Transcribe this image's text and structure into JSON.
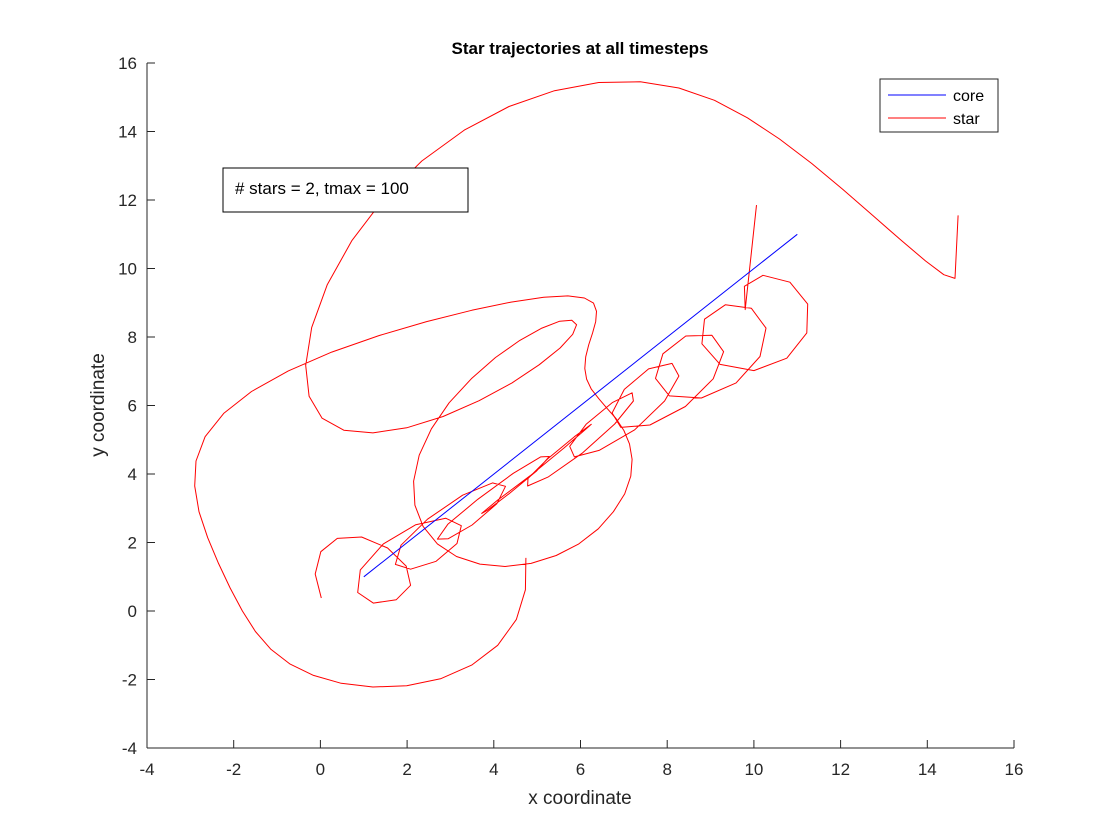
{
  "chart_data": {
    "type": "line",
    "title": "Star trajectories at all timesteps",
    "xlabel": "x coordinate",
    "ylabel": "y coordinate",
    "xlim": [
      -4,
      16
    ],
    "ylim": [
      -4,
      16
    ],
    "xticks": [
      -4,
      -2,
      0,
      2,
      4,
      6,
      8,
      10,
      12,
      14,
      16
    ],
    "yticks": [
      -4,
      -2,
      0,
      2,
      4,
      6,
      8,
      10,
      12,
      14,
      16
    ],
    "grid": false,
    "legend_position": "top-right",
    "annotation": "# stars = 2, tmax = 100",
    "series": [
      {
        "name": "core",
        "color": "#0000ff",
        "x": [
          1,
          11
        ],
        "y": [
          1,
          11
        ]
      },
      {
        "name": "star",
        "color": "#ff0000",
        "x": [
          0.02,
          -0.12,
          0.01,
          0.39,
          0.95,
          1.55,
          1.98,
          2.08,
          1.75,
          1.22,
          0.86,
          0.92,
          1.45,
          2.2,
          2.89,
          3.25,
          3.15,
          2.67,
          2.08,
          1.73,
          1.86,
          2.47,
          3.28,
          3.97,
          4.27,
          4.07,
          3.5,
          2.95,
          2.7,
          2.94,
          3.63,
          4.45,
          5.08,
          5.28,
          4.98,
          4.36,
          3.85,
          3.72,
          4.08,
          4.84,
          5.62,
          6.15,
          6.25,
          5.86,
          5.24,
          4.79,
          4.78,
          5.25,
          6.05,
          6.79,
          7.22,
          7.19,
          6.74,
          6.13,
          5.75,
          5.86,
          6.43,
          7.25,
          7.94,
          8.27,
          8.11,
          7.57,
          7.01,
          6.73,
          6.93,
          7.6,
          8.42,
          9.06,
          9.3,
          9.03,
          8.43,
          7.9,
          7.73,
          8.05,
          8.79,
          9.59,
          10.14,
          10.28,
          9.94,
          9.34,
          8.86,
          8.8,
          9.22,
          10.0,
          10.76,
          11.22,
          11.24,
          10.83,
          10.21,
          9.78,
          9.8,
          10.06
        ],
        "y": [
          0.38,
          1.08,
          1.73,
          2.12,
          2.16,
          1.84,
          1.31,
          0.75,
          0.33,
          0.23,
          0.54,
          1.2,
          1.96,
          2.52,
          2.71,
          2.49,
          1.97,
          1.45,
          1.22,
          1.36,
          1.92,
          2.68,
          3.38,
          3.74,
          3.64,
          3.13,
          2.51,
          2.11,
          2.1,
          2.53,
          3.26,
          4.02,
          4.5,
          4.51,
          4.08,
          3.43,
          2.94,
          2.85,
          3.23,
          3.95,
          4.76,
          5.34,
          5.45,
          5.09,
          4.44,
          3.87,
          3.65,
          3.91,
          4.62,
          5.46,
          6.13,
          6.37,
          6.09,
          5.45,
          4.81,
          4.5,
          4.69,
          5.29,
          6.13,
          6.86,
          7.23,
          7.07,
          6.47,
          5.78,
          5.36,
          5.43,
          5.97,
          6.78,
          7.57,
          8.05,
          8.03,
          7.51,
          6.79,
          6.28,
          6.22,
          6.66,
          7.43,
          8.26,
          8.84,
          8.94,
          8.52,
          7.8,
          7.2,
          7.02,
          7.38,
          8.12,
          8.96,
          9.6,
          9.8,
          9.48,
          8.8,
          11.85
        ]
      },
      {
        "name": "star",
        "color": "#ff0000",
        "x": [
          4.74,
          4.73,
          4.52,
          4.09,
          3.49,
          2.77,
          1.99,
          1.21,
          0.48,
          -0.16,
          -0.7,
          -1.14,
          -1.5,
          -1.8,
          -2.08,
          -2.35,
          -2.6,
          -2.8,
          -2.9,
          -2.87,
          -2.66,
          -2.23,
          -1.59,
          -0.74,
          0.26,
          1.35,
          2.45,
          3.49,
          4.4,
          5.15,
          5.71,
          6.09,
          6.3,
          6.37,
          6.35,
          6.28,
          6.19,
          6.12,
          6.1,
          6.14,
          6.25,
          6.42,
          6.61,
          6.82,
          7.0,
          7.13,
          7.19,
          7.16,
          7.02,
          6.76,
          6.41,
          5.96,
          5.44,
          4.86,
          4.26,
          3.68,
          3.14,
          2.7,
          2.37,
          2.18,
          2.15,
          2.28,
          2.56,
          2.97,
          3.48,
          4.04,
          4.6,
          5.11,
          5.52,
          5.8,
          5.91,
          5.82,
          5.53,
          5.05,
          4.42,
          3.66,
          2.83,
          1.99,
          1.21,
          0.54,
          0.04,
          -0.26,
          -0.34,
          -0.2,
          0.16,
          0.73,
          1.47,
          2.34,
          3.32,
          4.35,
          5.4,
          6.42,
          7.38,
          8.27,
          9.09,
          9.85,
          10.59,
          11.33,
          12.05,
          12.75,
          13.4,
          13.96,
          14.38,
          14.64,
          14.71
        ],
        "y": [
          1.55,
          0.62,
          -0.25,
          -1.0,
          -1.58,
          -1.98,
          -2.18,
          -2.22,
          -2.11,
          -1.88,
          -1.55,
          -1.12,
          -0.6,
          0.0,
          0.67,
          1.39,
          2.14,
          2.9,
          3.65,
          4.38,
          5.09,
          5.77,
          6.41,
          7.01,
          7.56,
          8.04,
          8.45,
          8.78,
          9.02,
          9.16,
          9.2,
          9.14,
          8.99,
          8.75,
          8.45,
          8.12,
          7.77,
          7.42,
          7.08,
          6.77,
          6.48,
          6.2,
          5.92,
          5.62,
          5.27,
          4.88,
          4.43,
          3.94,
          3.42,
          2.9,
          2.4,
          1.96,
          1.62,
          1.39,
          1.3,
          1.37,
          1.59,
          1.96,
          2.47,
          3.09,
          3.79,
          4.55,
          5.32,
          6.08,
          6.78,
          7.4,
          7.9,
          8.26,
          8.46,
          8.49,
          8.36,
          8.08,
          7.68,
          7.19,
          6.66,
          6.14,
          5.68,
          5.35,
          5.2,
          5.28,
          5.63,
          6.27,
          7.17,
          8.28,
          9.53,
          10.82,
          12.05,
          13.14,
          14.04,
          14.73,
          15.19,
          15.43,
          15.45,
          15.27,
          14.91,
          14.4,
          13.78,
          13.07,
          12.31,
          11.54,
          10.82,
          10.22,
          9.82,
          9.71,
          11.55
        ]
      }
    ]
  }
}
